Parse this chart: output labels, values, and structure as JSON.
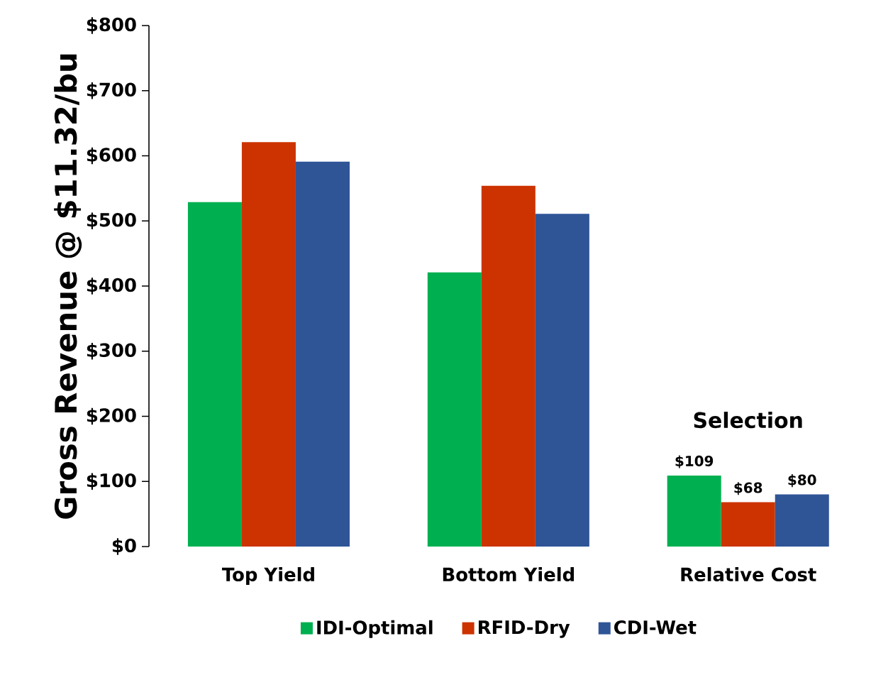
{
  "chart_data": {
    "type": "bar",
    "ylabel": "Gross Revenue @ $11.32/bu",
    "categories": [
      "Top Yield",
      "Bottom Yield",
      "Relative Cost"
    ],
    "series": [
      {
        "name": "IDI-Optimal",
        "color": "#00b050",
        "values": [
          529,
          421,
          109
        ],
        "value_labels": [
          null,
          null,
          "$109"
        ]
      },
      {
        "name": "RFID-Dry",
        "color": "#cc3300",
        "values": [
          621,
          554,
          68
        ],
        "value_labels": [
          null,
          null,
          "$68"
        ]
      },
      {
        "name": "CDI-Wet",
        "color": "#2f5597",
        "values": [
          591,
          511,
          80
        ],
        "value_labels": [
          null,
          null,
          "$80"
        ]
      }
    ],
    "ylim": [
      0,
      800
    ],
    "yticks": [
      {
        "value": 0,
        "label": "$0"
      },
      {
        "value": 100,
        "label": "$100"
      },
      {
        "value": 200,
        "label": "$200"
      },
      {
        "value": 300,
        "label": "$300"
      },
      {
        "value": 400,
        "label": "$400"
      },
      {
        "value": 500,
        "label": "$500"
      },
      {
        "value": 600,
        "label": "$600"
      },
      {
        "value": 700,
        "label": "$700"
      },
      {
        "value": 800,
        "label": "$800"
      }
    ],
    "annotations": [
      "Selection"
    ],
    "legend": "bottom"
  }
}
